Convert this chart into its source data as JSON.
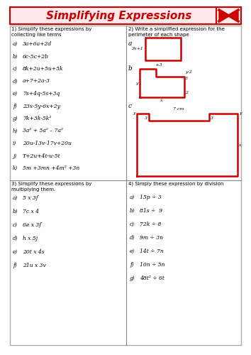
{
  "title": "Simplifying Expressions",
  "title_color": "#cc0000",
  "border_color": "#00dd00",
  "section1_header": "1) Simplify these expressions by\ncollecting like terms",
  "section2_header": "2) Write a simplified expression for the\nperimeter of each shape",
  "section3_header": "3) Simplify these expressions by\nmultiplying them.",
  "section4_header": "4) Simply these expression by division",
  "section1_items": [
    [
      "a)",
      "3a+6a+2d"
    ],
    [
      "b)",
      "6c-5c+2b"
    ],
    [
      "c)",
      "8k+2u+5u+5k"
    ],
    [
      "d)",
      "a+7+2a-3"
    ],
    [
      "e)",
      "7s+4q-5s+3q"
    ],
    [
      "f)",
      "23x-5y-6x+2y"
    ],
    [
      "g)",
      "7k+3k-5k²"
    ],
    [
      "h)",
      "3a² + 5a² – 7a²"
    ],
    [
      "i)",
      "20u-13v-17v+20u"
    ],
    [
      "j)",
      "T+2u+4t-u-5t"
    ],
    [
      "k)",
      "5m +3mn +4m² +3n"
    ]
  ],
  "section3_items": [
    [
      "a)",
      "5 x 3f"
    ],
    [
      "b)",
      "7c x 4"
    ],
    [
      "c)",
      "6e x 3f"
    ],
    [
      "d)",
      "h x 5j"
    ],
    [
      "e)",
      "20t x 4s"
    ],
    [
      "f)",
      "21u x 3v"
    ]
  ],
  "section4_items": [
    [
      "a)",
      "15p ÷ 3"
    ],
    [
      "b)",
      "81s ÷  9"
    ],
    [
      "c)",
      "72k ÷ 8"
    ],
    [
      "d)",
      "9m ÷ 3n"
    ],
    [
      "e)",
      "14t ÷ 7n"
    ],
    [
      "f)",
      "10n ÷ 5n"
    ],
    [
      "g)",
      "48t² ÷ 6t"
    ]
  ]
}
